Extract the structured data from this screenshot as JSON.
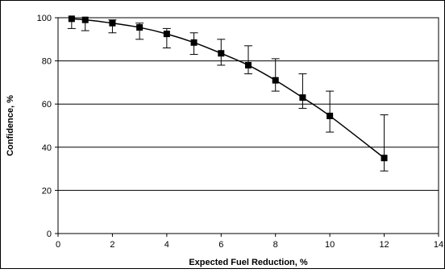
{
  "chart_data": {
    "type": "line",
    "title": "",
    "xlabel": "Expected Fuel Reduction, %",
    "ylabel": "Confidence, %",
    "xlim": [
      0,
      14
    ],
    "ylim": [
      0,
      100
    ],
    "x_ticks": [
      "0",
      "2",
      "4",
      "6",
      "8",
      "10",
      "12",
      "14"
    ],
    "y_ticks": [
      "0",
      "20",
      "40",
      "60",
      "80",
      "100"
    ],
    "grid": "horizontal",
    "legend": "none",
    "series": [
      {
        "marker": "square",
        "color": "#000000",
        "points": [
          {
            "x": 0.5,
            "y": 99.5,
            "err_low": 95,
            "err_high": 100
          },
          {
            "x": 1,
            "y": 99,
            "err_low": 94,
            "err_high": 100
          },
          {
            "x": 2,
            "y": 97.5,
            "err_low": 93,
            "err_high": 99
          },
          {
            "x": 3,
            "y": 95.5,
            "err_low": 90,
            "err_high": 97.5
          },
          {
            "x": 4,
            "y": 92.5,
            "err_low": 86,
            "err_high": 95
          },
          {
            "x": 5,
            "y": 88.5,
            "err_low": 83,
            "err_high": 93
          },
          {
            "x": 6,
            "y": 83.5,
            "err_low": 78,
            "err_high": 90
          },
          {
            "x": 7,
            "y": 78,
            "err_low": 74,
            "err_high": 87
          },
          {
            "x": 8,
            "y": 71,
            "err_low": 66,
            "err_high": 81
          },
          {
            "x": 9,
            "y": 63,
            "err_low": 58,
            "err_high": 74
          },
          {
            "x": 10,
            "y": 54.5,
            "err_low": 47,
            "err_high": 66
          },
          {
            "x": 12,
            "y": 35,
            "err_low": 29,
            "err_high": 55
          }
        ]
      }
    ]
  }
}
